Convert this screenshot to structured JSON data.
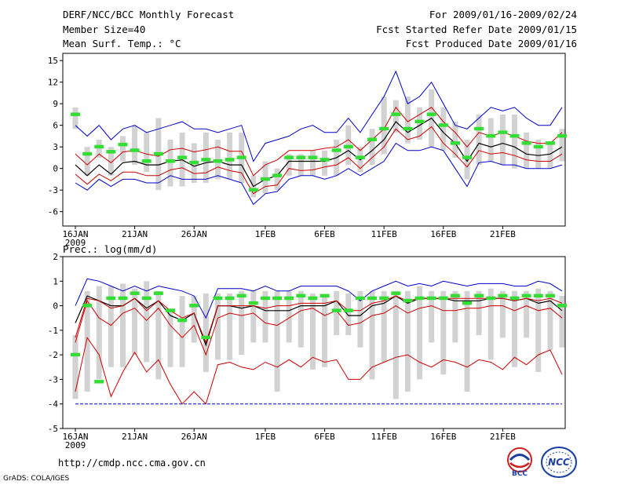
{
  "header": {
    "title": "DERF/NCC/BCC Monthly Forecast",
    "member_size": "Member Size=40",
    "variable1": "Mean Surf. Temp.: °C",
    "period": "For 2009/01/16-2009/02/24",
    "start_date": "Fcst Started Refer Date 2009/01/15",
    "produced": "Fcst Produced Date 2009/01/16"
  },
  "footer": {
    "url": "http://cmdp.ncc.cma.gov.cn",
    "grads": "GrADS: COLA/IGES",
    "logo1_text": "BCC",
    "logo2_text": "NCC"
  },
  "colors": {
    "bar": "#d2d2d2",
    "green": "#33dd33",
    "ens": "#000000",
    "red": "#cc0000",
    "blue": "#0000cc",
    "grid": "#bbbbbb"
  },
  "chart_data": [
    {
      "type": "line",
      "title": "Mean Surf. Temp.: °C",
      "ylabel": "",
      "xlabel": "",
      "ylim": [
        -8,
        16
      ],
      "yticks": [
        -6,
        -3,
        0,
        3,
        6,
        9,
        12,
        15
      ],
      "x_tick_labels": [
        "16JAN\n2009",
        "21JAN",
        "26JAN",
        "1FEB",
        "6FEB",
        "11FEB",
        "16FEB",
        "21FEB"
      ],
      "x_tick_days": [
        0,
        5,
        10,
        16,
        21,
        26,
        31,
        36
      ],
      "days": 40,
      "series": [
        {
          "name": "Ensemble Mean",
          "values": [
            0.5,
            -1,
            0.5,
            -0.8,
            0.8,
            1,
            0.5,
            0.5,
            1,
            1.2,
            0.3,
            0.8,
            1,
            0.5,
            0.5,
            -2.5,
            -1.5,
            -1,
            1,
            1,
            1,
            1,
            1.5,
            2.5,
            1.2,
            2.5,
            4,
            6.5,
            5,
            6,
            7,
            5,
            3.5,
            1,
            3.5,
            3,
            3.5,
            3,
            2,
            1.8,
            2,
            3
          ]
        },
        {
          "name": "Upper Red",
          "values": [
            2,
            0.5,
            2,
            0.8,
            2.3,
            2.5,
            2,
            1.7,
            2.6,
            2.8,
            2.3,
            2.6,
            3,
            2.4,
            2.4,
            -1,
            0.5,
            1.2,
            2.5,
            2.5,
            2.5,
            2.8,
            3,
            4,
            2.5,
            4,
            5.5,
            8.5,
            6.5,
            7.5,
            8.5,
            6.5,
            5,
            3,
            5,
            4.5,
            5,
            4.5,
            3.8,
            3.5,
            3.5,
            5
          ]
        },
        {
          "name": "Lower Red",
          "values": [
            -0.8,
            -2.2,
            -0.8,
            -1.7,
            -0.5,
            -0.5,
            -1,
            -1,
            -0.2,
            0.1,
            -0.7,
            -0.6,
            0.2,
            -0.3,
            -0.6,
            -3.5,
            -2.5,
            -2.3,
            0,
            -0.3,
            -0.2,
            0.2,
            0.5,
            1.5,
            0,
            1.5,
            3,
            5.5,
            4,
            4.5,
            5.8,
            3.5,
            2,
            0.2,
            2.5,
            2,
            2.2,
            1.8,
            1.2,
            1,
            1,
            2
          ]
        },
        {
          "name": "Upper Blue",
          "values": [
            6,
            4.5,
            6,
            4,
            5.5,
            6,
            5,
            5.5,
            6,
            6.5,
            5.5,
            5.5,
            5,
            5.5,
            6,
            1,
            3.5,
            4,
            4.5,
            5.5,
            6,
            5,
            5,
            7,
            5,
            7.5,
            10,
            13.5,
            9,
            10,
            12,
            9,
            6,
            5.5,
            7,
            8.5,
            8,
            8.5,
            7,
            6,
            6,
            8.5
          ]
        },
        {
          "name": "Lower Blue",
          "values": [
            -2,
            -3,
            -1.5,
            -2.5,
            -1.5,
            -1.5,
            -2,
            -2,
            -1,
            -1.5,
            -1.5,
            -1.5,
            -1,
            -1.5,
            -2,
            -5,
            -3.5,
            -3.2,
            -1.5,
            -1,
            -1,
            -1.5,
            -1,
            0,
            -1,
            0,
            1,
            3.5,
            2.5,
            2.5,
            3,
            2.5,
            0,
            -2.5,
            0.8,
            1,
            0.5,
            0.5,
            0,
            0,
            0,
            0.5
          ]
        },
        {
          "name": "Observed/Model (green)",
          "values": [
            7.5,
            2,
            3,
            2.3,
            3.3,
            2.5,
            1,
            2,
            1,
            1.5,
            0.8,
            1.2,
            1,
            1.2,
            1.5,
            -3,
            -1.5,
            -1,
            1.5,
            1.5,
            1.5,
            1.2,
            2.5,
            3,
            1.5,
            4,
            5.5,
            7.5,
            5.5,
            6.5,
            7.5,
            6,
            3.5,
            1.5,
            5.5,
            4.5,
            5,
            4.5,
            3.5,
            3,
            3.5,
            4.5
          ]
        }
      ],
      "bars_low": [
        5.5,
        -1,
        1.5,
        -1,
        1,
        0.5,
        -0.5,
        -3,
        -2.5,
        -2.5,
        -2,
        -2,
        -1.5,
        -1.5,
        -2,
        -4,
        -3.5,
        -3,
        -1,
        -1,
        -1,
        -1,
        -1,
        0.5,
        -0.5,
        0.5,
        2,
        5,
        3.5,
        4,
        3,
        2.5,
        1.5,
        -1.5,
        0.5,
        1,
        0.5,
        0,
        0,
        0,
        0,
        1
      ],
      "bars_high": [
        8.5,
        3,
        4,
        3,
        4.5,
        6,
        5,
        7,
        4,
        5,
        3.5,
        5,
        4,
        5,
        5,
        -1,
        1,
        0,
        2,
        2,
        2.5,
        2.5,
        4,
        6,
        3,
        5.5,
        10,
        9.5,
        10,
        8.5,
        11,
        8.5,
        6.5,
        4,
        7.5,
        7,
        7.5,
        7.5,
        5,
        4,
        3.5,
        5.5
      ]
    },
    {
      "type": "line",
      "title": "Prec.: log(mm/d)",
      "ylabel": "",
      "xlabel": "",
      "ylim": [
        -5,
        2
      ],
      "yticks": [
        -5,
        -4,
        -3,
        -2,
        -1,
        0,
        1,
        2
      ],
      "x_tick_labels": [
        "16JAN\n2009",
        "21JAN",
        "26JAN",
        "1FEB",
        "6FEB",
        "11FEB",
        "16FEB",
        "21FEB"
      ],
      "x_tick_days": [
        0,
        5,
        10,
        16,
        21,
        26,
        31,
        36
      ],
      "days": 40,
      "series": [
        {
          "name": "Ensemble Mean",
          "values": [
            -0.7,
            0.4,
            0.2,
            0,
            0,
            0.3,
            -0.1,
            0.2,
            -0.4,
            -0.6,
            -0.3,
            -1.6,
            0,
            0,
            -0.1,
            0,
            -0.2,
            -0.2,
            -0.2,
            0,
            0,
            0,
            0.2,
            -0.4,
            -0.4,
            0,
            0.1,
            0.4,
            0.1,
            0.3,
            0.3,
            0.3,
            0.2,
            0.2,
            0.2,
            0.3,
            0.3,
            0.2,
            0.3,
            0.1,
            0.2,
            -0.2
          ]
        },
        {
          "name": "Upper Red",
          "values": [
            -1.3,
            0.3,
            0.2,
            -0.1,
            0,
            0.3,
            -0.2,
            0.2,
            -0.2,
            -0.5,
            -0.3,
            -1.5,
            0,
            0,
            0,
            0,
            -0.1,
            0,
            0,
            0.1,
            0.1,
            0.1,
            0.2,
            -0.2,
            -0.2,
            0.1,
            0.2,
            0.4,
            0.2,
            0.3,
            0.3,
            0.3,
            0.3,
            0.3,
            0.3,
            0.3,
            0.3,
            0.2,
            0.3,
            0.2,
            0.3,
            0.1
          ]
        },
        {
          "name": "Lower Red",
          "values": [
            -1.5,
            0.2,
            -0.5,
            -0.8,
            -0.3,
            -0.1,
            -0.6,
            -0.1,
            -0.8,
            -1.3,
            -0.8,
            -2,
            -0.5,
            -0.3,
            -0.4,
            -0.3,
            -0.7,
            -0.8,
            -0.5,
            -0.2,
            -0.1,
            -0.4,
            -0.2,
            -0.8,
            -0.7,
            -0.4,
            -0.3,
            0,
            -0.3,
            -0.1,
            0,
            -0.2,
            -0.2,
            -0.1,
            -0.1,
            0,
            0,
            -0.2,
            0,
            -0.2,
            -0.1,
            -0.5
          ]
        },
        {
          "name": "Lower Red 2",
          "values": [
            -3.5,
            -1.3,
            -2,
            -3.7,
            -2.7,
            -1.9,
            -2.7,
            -2.2,
            -3.2,
            -4,
            -3.5,
            -4,
            -2.4,
            -2.3,
            -2.5,
            -2.6,
            -2.3,
            -2.5,
            -2.2,
            -2.5,
            -2.1,
            -2.3,
            -2.2,
            -3,
            -3,
            -2.5,
            -2.3,
            -2.1,
            -2,
            -2.3,
            -2.5,
            -2.2,
            -2.3,
            -2.5,
            -2.2,
            -2.3,
            -2.6,
            -2.1,
            -2.4,
            -2,
            -1.8,
            -2.8
          ]
        },
        {
          "name": "Upper Blue",
          "values": [
            0,
            1.1,
            1,
            0.8,
            0.6,
            0.8,
            0.6,
            0.8,
            0.7,
            0.6,
            0.4,
            -0.5,
            0.7,
            0.7,
            0.7,
            0.6,
            0.8,
            0.6,
            0.6,
            0.8,
            0.8,
            0.8,
            0.8,
            0.6,
            0.2,
            0.6,
            0.8,
            1,
            0.8,
            0.9,
            0.8,
            1,
            0.9,
            0.8,
            0.9,
            0.9,
            0.9,
            0.8,
            0.8,
            1,
            0.9,
            0.6
          ]
        },
        {
          "name": "Lower Blue",
          "values": [
            -4,
            -4,
            -4,
            -4,
            -4,
            -4,
            -4,
            -4,
            -4,
            -4,
            -4,
            -4,
            -4,
            -4,
            -4,
            -4,
            -4,
            -4,
            -4,
            -4,
            -4,
            -4,
            -4,
            -4,
            -4,
            -4,
            -4,
            -4,
            -4,
            -4,
            -4,
            -4,
            -4,
            -4,
            -4,
            -4,
            -4,
            -4,
            -4,
            -4,
            -4,
            -4
          ]
        },
        {
          "name": "Observed/Model (green)",
          "values": [
            -2,
            0,
            -3.1,
            0.3,
            0.3,
            0.5,
            0.3,
            0.5,
            -0.2,
            -0.6,
            0,
            -1.3,
            0.3,
            0.3,
            0.4,
            0.1,
            0.3,
            0.3,
            0.3,
            0.4,
            0.3,
            0.4,
            -0.2,
            -0.2,
            0.3,
            0.3,
            0.3,
            0.5,
            0.2,
            0.3,
            0.3,
            0.3,
            0.4,
            0.1,
            0.4,
            0.3,
            0.4,
            0.3,
            0.4,
            0.4,
            0.4,
            0
          ]
        }
      ],
      "bars_low": [
        -3.8,
        -3.5,
        -3,
        -2.5,
        -2.5,
        -2,
        -2.3,
        -3,
        -2.5,
        -2.5,
        -1.5,
        -2.7,
        -2.2,
        -2.2,
        -2,
        -1.5,
        -1.5,
        -3.5,
        -1.5,
        -1.7,
        -2.6,
        -2.5,
        -1.2,
        -1.2,
        -1.7,
        -3,
        -2.3,
        -3.8,
        -3.5,
        -3,
        -1.5,
        -2.8,
        -1.5,
        -3.5,
        -1.2,
        -2.2,
        -1.3,
        -2.5,
        -1.3,
        -2.7,
        -1.8,
        -1.7
      ],
      "bars_high": [
        -1.2,
        0.6,
        0.8,
        0.8,
        0.9,
        0.7,
        1,
        0.6,
        -0.2,
        0.4,
        0.4,
        0.5,
        0.5,
        0.5,
        0.6,
        0.6,
        0.6,
        0.6,
        0.6,
        0.6,
        0.5,
        0.4,
        0.6,
        0.5,
        0.6,
        0.6,
        0.6,
        0.6,
        0.6,
        0.8,
        0.6,
        0.6,
        0.6,
        0.6,
        0.6,
        0.7,
        0.6,
        0.6,
        0.6,
        0.7,
        0.6,
        0.4
      ]
    }
  ]
}
